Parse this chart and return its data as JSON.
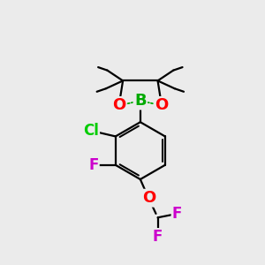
{
  "bg_color": "#ebebeb",
  "bond_color": "#000000",
  "bond_width": 1.6,
  "dashed_bond_color": "#00aa00",
  "atom_labels": {
    "O1": {
      "text": "O",
      "color": "#ff0000",
      "fontsize": 13
    },
    "O2": {
      "text": "O",
      "color": "#ff0000",
      "fontsize": 13
    },
    "B": {
      "text": "B",
      "color": "#00aa00",
      "fontsize": 13
    },
    "Cl": {
      "text": "Cl",
      "color": "#00cc00",
      "fontsize": 12
    },
    "F1": {
      "text": "F",
      "color": "#cc00cc",
      "fontsize": 12
    },
    "O3": {
      "text": "O",
      "color": "#ff0000",
      "fontsize": 13
    },
    "F2": {
      "text": "F",
      "color": "#cc00cc",
      "fontsize": 12
    },
    "F3": {
      "text": "F",
      "color": "#cc00cc",
      "fontsize": 12
    }
  },
  "figsize": [
    3.0,
    3.0
  ],
  "dpi": 100
}
